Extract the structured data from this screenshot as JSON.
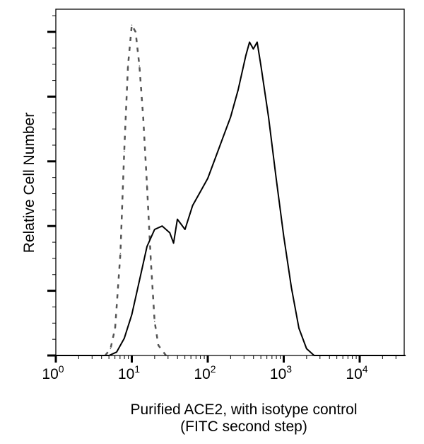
{
  "chart_data": {
    "type": "line",
    "title": "",
    "xlabel": "Purified ACE2, with isotype control",
    "xlabel_line2": "(FITC second step)",
    "ylabel": "Relative Cell Number",
    "xscale": "log",
    "xlim_log10": [
      0,
      4.6
    ],
    "ylim": [
      0,
      100
    ],
    "x_ticks": [
      {
        "exp": 0,
        "base": "10",
        "sup": "0"
      },
      {
        "exp": 1,
        "base": "10",
        "sup": "1"
      },
      {
        "exp": 2,
        "base": "10",
        "sup": "2"
      },
      {
        "exp": 3,
        "base": "10",
        "sup": "3"
      },
      {
        "exp": 4,
        "base": "10",
        "sup": "4"
      }
    ],
    "y_major_ticks": [
      0,
      19,
      38,
      57,
      76,
      95
    ],
    "grid": false,
    "legend": "none",
    "series": [
      {
        "name": "Isotype control",
        "style": "dashed",
        "color": "#555555",
        "log10_x": [
          0.65,
          0.72,
          0.78,
          0.85,
          0.9,
          0.95,
          1.0,
          1.05,
          1.1,
          1.15,
          1.2,
          1.25,
          1.3,
          1.35,
          1.45
        ],
        "values": [
          0,
          2,
          8,
          30,
          60,
          85,
          97,
          95,
          85,
          70,
          50,
          28,
          10,
          3,
          0
        ]
      },
      {
        "name": "Purified ACE2",
        "style": "solid",
        "color": "#000000",
        "log10_x": [
          0,
          0.7,
          0.8,
          0.9,
          1.0,
          1.1,
          1.2,
          1.3,
          1.4,
          1.5,
          1.55,
          1.6,
          1.7,
          1.8,
          1.9,
          2.0,
          2.1,
          2.2,
          2.3,
          2.4,
          2.5,
          2.55,
          2.6,
          2.65,
          2.7,
          2.8,
          2.9,
          3.0,
          3.1,
          3.2,
          3.3,
          3.4,
          4.6
        ],
        "values": [
          0,
          0,
          1,
          5,
          12,
          22,
          32,
          37,
          38,
          36,
          33,
          40,
          37,
          44,
          48,
          52,
          58,
          64,
          70,
          78,
          88,
          92,
          90,
          92,
          85,
          70,
          52,
          35,
          20,
          8,
          2,
          0,
          0
        ]
      }
    ]
  }
}
